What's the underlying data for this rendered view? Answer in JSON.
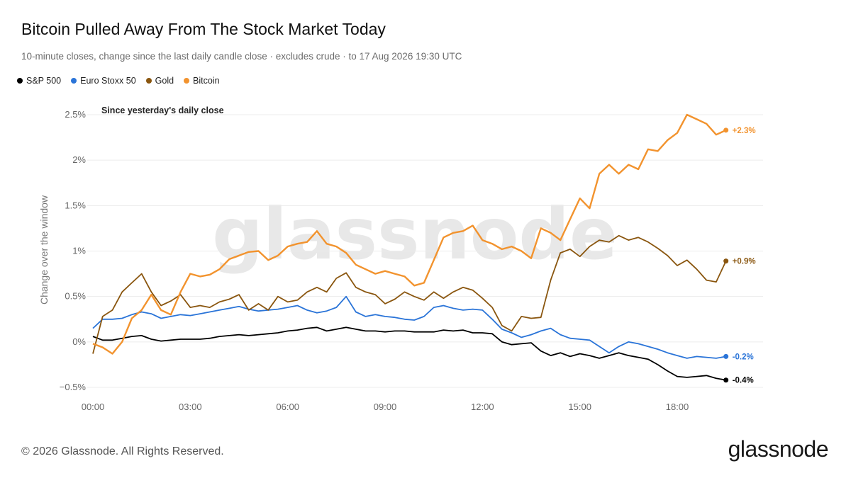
{
  "header": {
    "title": "Bitcoin Pulled Away From The Stock Market Today",
    "subtitle": "10-minute closes, change since the last daily candle close · excludes crude · to 17 Aug 2026 19:30 UTC"
  },
  "footer": {
    "copyright": "© 2026 Glassnode. All Rights Reserved.",
    "logo": "glassnode"
  },
  "chart_data": {
    "type": "line",
    "ylabel": "Change over the window",
    "annotation": "Since yesterday's daily close",
    "watermark": "glassnode",
    "ylim": [
      -0.5,
      2.5
    ],
    "yticks": [
      {
        "value": 2.5,
        "label": "2.5%"
      },
      {
        "value": 2,
        "label": "2%"
      },
      {
        "value": 1.5,
        "label": "1.5%"
      },
      {
        "value": 1,
        "label": "1%"
      },
      {
        "value": 0.5,
        "label": "0.5%"
      },
      {
        "value": 0,
        "label": "0%"
      },
      {
        "value": -0.5,
        "label": "−0.5%"
      }
    ],
    "xticks": [
      {
        "value": 0,
        "label": "00:00"
      },
      {
        "value": 3,
        "label": "03:00"
      },
      {
        "value": 6,
        "label": "06:00"
      },
      {
        "value": 9,
        "label": "09:00"
      },
      {
        "value": 12,
        "label": "12:00"
      },
      {
        "value": 15,
        "label": "15:00"
      },
      {
        "value": 18,
        "label": "18:00"
      }
    ],
    "xlim": [
      0,
      19.5
    ],
    "grid": true,
    "legend_position": "top-left",
    "series": [
      {
        "name": "S&P 500",
        "color": "#000000",
        "end_label": "-0.4%",
        "points": [
          [
            0,
            0.06
          ],
          [
            0.3,
            0.02
          ],
          [
            0.6,
            0.02
          ],
          [
            0.9,
            0.04
          ],
          [
            1.2,
            0.06
          ],
          [
            1.5,
            0.07
          ],
          [
            1.8,
            0.03
          ],
          [
            2.1,
            0.01
          ],
          [
            2.4,
            0.02
          ],
          [
            2.7,
            0.03
          ],
          [
            3,
            0.03
          ],
          [
            3.3,
            0.03
          ],
          [
            3.6,
            0.04
          ],
          [
            3.9,
            0.06
          ],
          [
            4.2,
            0.07
          ],
          [
            4.5,
            0.08
          ],
          [
            4.8,
            0.07
          ],
          [
            5.1,
            0.08
          ],
          [
            5.4,
            0.09
          ],
          [
            5.7,
            0.1
          ],
          [
            6,
            0.12
          ],
          [
            6.3,
            0.13
          ],
          [
            6.6,
            0.15
          ],
          [
            6.9,
            0.16
          ],
          [
            7.2,
            0.12
          ],
          [
            7.5,
            0.14
          ],
          [
            7.8,
            0.16
          ],
          [
            8.1,
            0.14
          ],
          [
            8.4,
            0.12
          ],
          [
            8.7,
            0.12
          ],
          [
            9,
            0.11
          ],
          [
            9.3,
            0.12
          ],
          [
            9.6,
            0.12
          ],
          [
            9.9,
            0.11
          ],
          [
            10.2,
            0.11
          ],
          [
            10.5,
            0.11
          ],
          [
            10.8,
            0.13
          ],
          [
            11.1,
            0.12
          ],
          [
            11.4,
            0.13
          ],
          [
            11.7,
            0.1
          ],
          [
            12,
            0.1
          ],
          [
            12.3,
            0.09
          ],
          [
            12.6,
            0.0
          ],
          [
            12.9,
            -0.03
          ],
          [
            13.2,
            -0.02
          ],
          [
            13.5,
            -0.01
          ],
          [
            13.8,
            -0.1
          ],
          [
            14.1,
            -0.15
          ],
          [
            14.4,
            -0.12
          ],
          [
            14.7,
            -0.16
          ],
          [
            15,
            -0.13
          ],
          [
            15.3,
            -0.15
          ],
          [
            15.6,
            -0.18
          ],
          [
            15.9,
            -0.15
          ],
          [
            16.2,
            -0.12
          ],
          [
            16.5,
            -0.15
          ],
          [
            16.8,
            -0.17
          ],
          [
            17.1,
            -0.19
          ],
          [
            17.4,
            -0.25
          ],
          [
            17.7,
            -0.32
          ],
          [
            18,
            -0.38
          ],
          [
            18.3,
            -0.39
          ],
          [
            18.6,
            -0.38
          ],
          [
            18.9,
            -0.37
          ],
          [
            19.2,
            -0.4
          ],
          [
            19.5,
            -0.42
          ]
        ]
      },
      {
        "name": "Euro Stoxx 50",
        "color": "#2a74d8",
        "end_label": "-0.2%",
        "points": [
          [
            0,
            0.15
          ],
          [
            0.3,
            0.25
          ],
          [
            0.6,
            0.25
          ],
          [
            0.9,
            0.26
          ],
          [
            1.2,
            0.3
          ],
          [
            1.5,
            0.33
          ],
          [
            1.8,
            0.31
          ],
          [
            2.1,
            0.26
          ],
          [
            2.4,
            0.28
          ],
          [
            2.7,
            0.3
          ],
          [
            3,
            0.29
          ],
          [
            3.3,
            0.31
          ],
          [
            3.6,
            0.33
          ],
          [
            3.9,
            0.35
          ],
          [
            4.2,
            0.37
          ],
          [
            4.5,
            0.39
          ],
          [
            4.8,
            0.36
          ],
          [
            5.1,
            0.34
          ],
          [
            5.4,
            0.35
          ],
          [
            5.7,
            0.36
          ],
          [
            6,
            0.38
          ],
          [
            6.3,
            0.4
          ],
          [
            6.6,
            0.35
          ],
          [
            6.9,
            0.32
          ],
          [
            7.2,
            0.34
          ],
          [
            7.5,
            0.38
          ],
          [
            7.8,
            0.5
          ],
          [
            8.1,
            0.33
          ],
          [
            8.4,
            0.28
          ],
          [
            8.7,
            0.3
          ],
          [
            9,
            0.28
          ],
          [
            9.3,
            0.27
          ],
          [
            9.6,
            0.25
          ],
          [
            9.9,
            0.24
          ],
          [
            10.2,
            0.28
          ],
          [
            10.5,
            0.38
          ],
          [
            10.8,
            0.4
          ],
          [
            11.1,
            0.37
          ],
          [
            11.4,
            0.35
          ],
          [
            11.7,
            0.36
          ],
          [
            12,
            0.35
          ],
          [
            12.3,
            0.25
          ],
          [
            12.6,
            0.14
          ],
          [
            12.9,
            0.1
          ],
          [
            13.2,
            0.05
          ],
          [
            13.5,
            0.08
          ],
          [
            13.8,
            0.12
          ],
          [
            14.1,
            0.15
          ],
          [
            14.4,
            0.08
          ],
          [
            14.7,
            0.04
          ],
          [
            15,
            0.03
          ],
          [
            15.3,
            0.02
          ],
          [
            15.6,
            -0.05
          ],
          [
            15.9,
            -0.12
          ],
          [
            16.2,
            -0.05
          ],
          [
            16.5,
            0.0
          ],
          [
            16.8,
            -0.02
          ],
          [
            17.1,
            -0.05
          ],
          [
            17.4,
            -0.08
          ],
          [
            17.7,
            -0.12
          ],
          [
            18,
            -0.15
          ],
          [
            18.3,
            -0.18
          ],
          [
            18.6,
            -0.16
          ],
          [
            18.9,
            -0.17
          ],
          [
            19.2,
            -0.18
          ],
          [
            19.5,
            -0.16
          ]
        ]
      },
      {
        "name": "Gold",
        "color": "#8a560f",
        "end_label": "+0.9%",
        "points": [
          [
            0,
            -0.13
          ],
          [
            0.3,
            0.28
          ],
          [
            0.6,
            0.35
          ],
          [
            0.9,
            0.55
          ],
          [
            1.2,
            0.65
          ],
          [
            1.5,
            0.75
          ],
          [
            1.8,
            0.55
          ],
          [
            2.1,
            0.4
          ],
          [
            2.4,
            0.45
          ],
          [
            2.7,
            0.52
          ],
          [
            3,
            0.38
          ],
          [
            3.3,
            0.4
          ],
          [
            3.6,
            0.38
          ],
          [
            3.9,
            0.44
          ],
          [
            4.2,
            0.47
          ],
          [
            4.5,
            0.52
          ],
          [
            4.8,
            0.35
          ],
          [
            5.1,
            0.42
          ],
          [
            5.4,
            0.35
          ],
          [
            5.7,
            0.5
          ],
          [
            6,
            0.44
          ],
          [
            6.3,
            0.46
          ],
          [
            6.6,
            0.55
          ],
          [
            6.9,
            0.6
          ],
          [
            7.2,
            0.55
          ],
          [
            7.5,
            0.7
          ],
          [
            7.8,
            0.76
          ],
          [
            8.1,
            0.6
          ],
          [
            8.4,
            0.55
          ],
          [
            8.7,
            0.52
          ],
          [
            9,
            0.42
          ],
          [
            9.3,
            0.47
          ],
          [
            9.6,
            0.55
          ],
          [
            9.9,
            0.5
          ],
          [
            10.2,
            0.46
          ],
          [
            10.5,
            0.55
          ],
          [
            10.8,
            0.48
          ],
          [
            11.1,
            0.55
          ],
          [
            11.4,
            0.6
          ],
          [
            11.7,
            0.57
          ],
          [
            12,
            0.48
          ],
          [
            12.3,
            0.38
          ],
          [
            12.6,
            0.18
          ],
          [
            12.9,
            0.12
          ],
          [
            13.2,
            0.28
          ],
          [
            13.5,
            0.26
          ],
          [
            13.8,
            0.27
          ],
          [
            14.1,
            0.68
          ],
          [
            14.4,
            0.98
          ],
          [
            14.7,
            1.02
          ],
          [
            15,
            0.94
          ],
          [
            15.3,
            1.05
          ],
          [
            15.6,
            1.12
          ],
          [
            15.9,
            1.1
          ],
          [
            16.2,
            1.17
          ],
          [
            16.5,
            1.12
          ],
          [
            16.8,
            1.15
          ],
          [
            17.1,
            1.1
          ],
          [
            17.4,
            1.03
          ],
          [
            17.7,
            0.95
          ],
          [
            18,
            0.84
          ],
          [
            18.3,
            0.9
          ],
          [
            18.6,
            0.8
          ],
          [
            18.9,
            0.68
          ],
          [
            19.2,
            0.66
          ],
          [
            19.5,
            0.89
          ]
        ]
      },
      {
        "name": "Bitcoin",
        "color": "#f2932e",
        "end_label": "+2.3%",
        "points": [
          [
            0,
            -0.02
          ],
          [
            0.3,
            -0.06
          ],
          [
            0.6,
            -0.13
          ],
          [
            0.9,
            0.0
          ],
          [
            1.2,
            0.26
          ],
          [
            1.5,
            0.35
          ],
          [
            1.8,
            0.52
          ],
          [
            2.1,
            0.35
          ],
          [
            2.4,
            0.3
          ],
          [
            2.7,
            0.55
          ],
          [
            3,
            0.75
          ],
          [
            3.3,
            0.72
          ],
          [
            3.6,
            0.74
          ],
          [
            3.9,
            0.8
          ],
          [
            4.2,
            0.91
          ],
          [
            4.5,
            0.95
          ],
          [
            4.8,
            0.99
          ],
          [
            5.1,
            1.0
          ],
          [
            5.4,
            0.9
          ],
          [
            5.7,
            0.95
          ],
          [
            6,
            1.05
          ],
          [
            6.3,
            1.08
          ],
          [
            6.6,
            1.1
          ],
          [
            6.9,
            1.22
          ],
          [
            7.2,
            1.08
          ],
          [
            7.5,
            1.05
          ],
          [
            7.8,
            0.98
          ],
          [
            8.1,
            0.85
          ],
          [
            8.4,
            0.8
          ],
          [
            8.7,
            0.75
          ],
          [
            9,
            0.78
          ],
          [
            9.3,
            0.75
          ],
          [
            9.6,
            0.72
          ],
          [
            9.9,
            0.62
          ],
          [
            10.2,
            0.65
          ],
          [
            10.5,
            0.9
          ],
          [
            10.8,
            1.15
          ],
          [
            11.1,
            1.2
          ],
          [
            11.4,
            1.22
          ],
          [
            11.7,
            1.28
          ],
          [
            12,
            1.12
          ],
          [
            12.3,
            1.08
          ],
          [
            12.6,
            1.02
          ],
          [
            12.9,
            1.05
          ],
          [
            13.2,
            1.0
          ],
          [
            13.5,
            0.92
          ],
          [
            13.8,
            1.25
          ],
          [
            14.1,
            1.2
          ],
          [
            14.4,
            1.12
          ],
          [
            14.7,
            1.35
          ],
          [
            15,
            1.58
          ],
          [
            15.3,
            1.47
          ],
          [
            15.6,
            1.85
          ],
          [
            15.9,
            1.95
          ],
          [
            16.2,
            1.85
          ],
          [
            16.5,
            1.95
          ],
          [
            16.8,
            1.9
          ],
          [
            17.1,
            2.12
          ],
          [
            17.4,
            2.1
          ],
          [
            17.7,
            2.22
          ],
          [
            18,
            2.3
          ],
          [
            18.3,
            2.5
          ],
          [
            18.6,
            2.45
          ],
          [
            18.9,
            2.4
          ],
          [
            19.2,
            2.28
          ],
          [
            19.5,
            2.33
          ]
        ]
      }
    ]
  }
}
